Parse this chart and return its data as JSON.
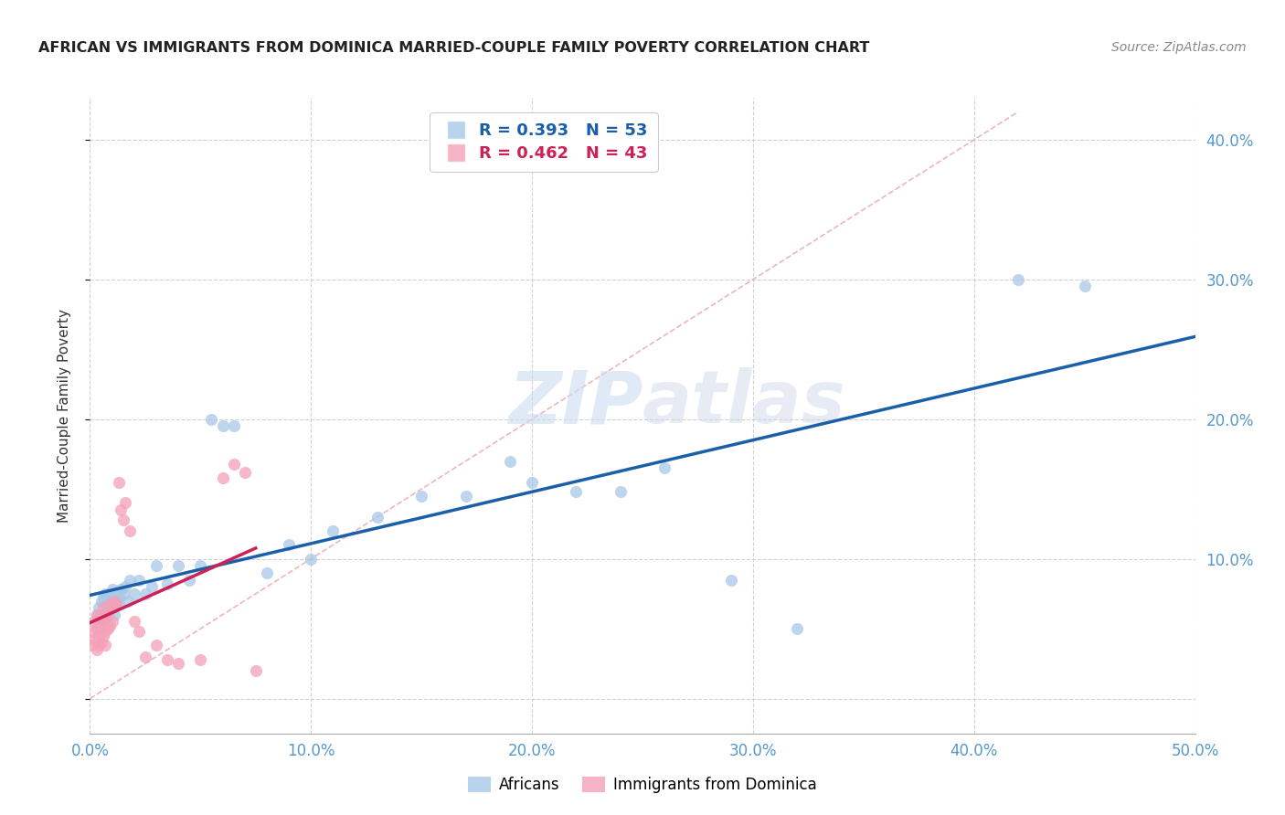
{
  "title": "AFRICAN VS IMMIGRANTS FROM DOMINICA MARRIED-COUPLE FAMILY POVERTY CORRELATION CHART",
  "source": "Source: ZipAtlas.com",
  "ylabel": "Married-Couple Family Poverty",
  "xlim": [
    0.0,
    0.5
  ],
  "ylim": [
    -0.025,
    0.43
  ],
  "xtick_vals": [
    0.0,
    0.1,
    0.2,
    0.3,
    0.4,
    0.5
  ],
  "ytick_vals": [
    0.0,
    0.1,
    0.2,
    0.3,
    0.4
  ],
  "xtick_labels": [
    "0.0%",
    "10.0%",
    "20.0%",
    "30.0%",
    "40.0%",
    "50.0%"
  ],
  "ytick_labels": [
    "",
    "10.0%",
    "20.0%",
    "30.0%",
    "40.0%"
  ],
  "background_color": "#ffffff",
  "watermark_zip": "ZIP",
  "watermark_atlas": "atlas",
  "legend_line1": "R = 0.393   N = 53",
  "legend_line2": "R = 0.462   N = 43",
  "african_color": "#a8c8e8",
  "dominica_color": "#f4a0b8",
  "african_line_color": "#1a5fa8",
  "dominica_line_color": "#cc2255",
  "diagonal_color": "#e8b0b8",
  "tick_color": "#5599cc",
  "title_color": "#222222",
  "source_color": "#888888",
  "ylabel_color": "#333333",
  "africans_x": [
    0.003,
    0.004,
    0.005,
    0.005,
    0.006,
    0.006,
    0.007,
    0.007,
    0.008,
    0.008,
    0.009,
    0.009,
    0.01,
    0.01,
    0.011,
    0.011,
    0.012,
    0.012,
    0.013,
    0.013,
    0.014,
    0.015,
    0.016,
    0.017,
    0.018,
    0.02,
    0.022,
    0.025,
    0.028,
    0.03,
    0.035,
    0.04,
    0.045,
    0.05,
    0.055,
    0.06,
    0.065,
    0.08,
    0.09,
    0.1,
    0.11,
    0.13,
    0.15,
    0.17,
    0.19,
    0.2,
    0.22,
    0.24,
    0.26,
    0.29,
    0.32,
    0.42,
    0.45
  ],
  "africans_y": [
    0.06,
    0.065,
    0.055,
    0.07,
    0.058,
    0.072,
    0.06,
    0.075,
    0.065,
    0.068,
    0.07,
    0.075,
    0.065,
    0.078,
    0.06,
    0.072,
    0.07,
    0.075,
    0.068,
    0.072,
    0.078,
    0.075,
    0.08,
    0.07,
    0.085,
    0.075,
    0.085,
    0.075,
    0.08,
    0.095,
    0.082,
    0.095,
    0.085,
    0.095,
    0.2,
    0.195,
    0.195,
    0.09,
    0.11,
    0.1,
    0.12,
    0.13,
    0.145,
    0.145,
    0.17,
    0.155,
    0.148,
    0.148,
    0.165,
    0.085,
    0.05,
    0.3,
    0.295
  ],
  "dominica_x": [
    0.001,
    0.001,
    0.002,
    0.002,
    0.003,
    0.003,
    0.003,
    0.004,
    0.004,
    0.004,
    0.005,
    0.005,
    0.005,
    0.006,
    0.006,
    0.006,
    0.007,
    0.007,
    0.007,
    0.008,
    0.008,
    0.009,
    0.009,
    0.01,
    0.01,
    0.011,
    0.012,
    0.013,
    0.014,
    0.015,
    0.016,
    0.018,
    0.02,
    0.022,
    0.025,
    0.03,
    0.035,
    0.04,
    0.05,
    0.06,
    0.065,
    0.07,
    0.075
  ],
  "dominica_y": [
    0.048,
    0.038,
    0.055,
    0.042,
    0.05,
    0.06,
    0.035,
    0.055,
    0.045,
    0.038,
    0.06,
    0.05,
    0.04,
    0.055,
    0.065,
    0.045,
    0.058,
    0.048,
    0.038,
    0.06,
    0.05,
    0.068,
    0.052,
    0.055,
    0.065,
    0.07,
    0.068,
    0.155,
    0.135,
    0.128,
    0.14,
    0.12,
    0.055,
    0.048,
    0.03,
    0.038,
    0.028,
    0.025,
    0.028,
    0.158,
    0.168,
    0.162,
    0.02
  ]
}
